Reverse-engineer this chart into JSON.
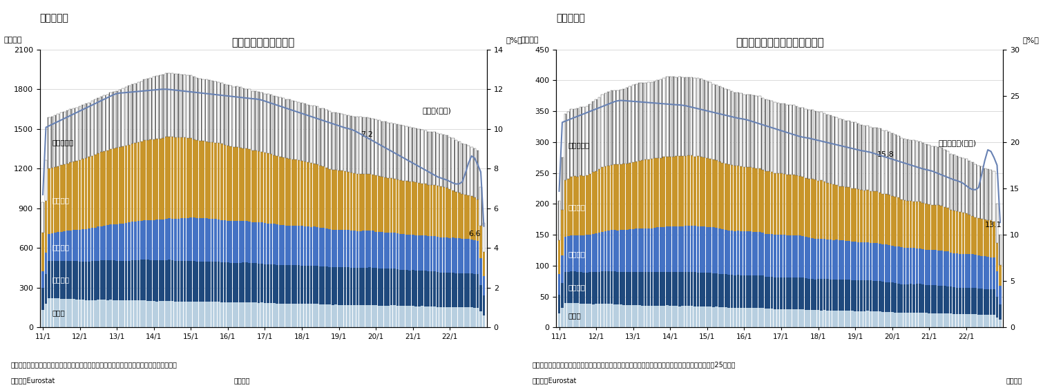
{
  "chart1": {
    "title": "失業率と国別失業者数",
    "subtitle": "（図表１）",
    "ylabel_left": "（万人）",
    "ylabel_right": "（%）",
    "ylim_left": [
      0,
      2100
    ],
    "ylim_right": [
      0,
      14
    ],
    "yticks_left": [
      0,
      300,
      600,
      900,
      1200,
      1500,
      1800,
      2100
    ],
    "yticks_right": [
      0,
      2,
      4,
      6,
      8,
      10,
      12,
      14
    ],
    "annotation_rate": "7.2",
    "annotation_rate2": "6.6",
    "annotation_rate_label": "失業率(右軸)",
    "note1": "（注）季節調整値、その他の国はドイツ・フランス・イタリア・スペインを除くユーロ圏。",
    "note2": "（資料）Eurostat",
    "note3": "（月次）",
    "colors": {
      "germany": "#c8d8e8",
      "france": "#4472c4",
      "italy": "#2f5496",
      "spain": "#c8952a",
      "others": "#ffffff",
      "hatch_color": "#333333",
      "line": "#4472c4"
    },
    "labels": [
      "ドイツ",
      "フランス",
      "イタリア",
      "スペイン",
      "その他の国"
    ]
  },
  "chart2": {
    "title": "若年失業率と国別若年失業者数",
    "subtitle": "（図表２）",
    "ylabel_left": "（万人）",
    "ylabel_right": "（%）",
    "ylim_left": [
      0,
      450
    ],
    "ylim_right": [
      0,
      30
    ],
    "yticks_left": [
      0,
      50,
      100,
      150,
      200,
      250,
      300,
      350,
      400,
      450
    ],
    "yticks_right": [
      0,
      5,
      10,
      15,
      20,
      25,
      30
    ],
    "annotation_rate": "15.8",
    "annotation_rate2": "13.1",
    "annotation_rate_label": "若年失業率(右軸)",
    "note1": "（注）季節調整値、その他の国はドイツ・フランス・イタリア・スペインを除くユーロ圏。若年者は25才未満",
    "note2": "（資料）Eurostat",
    "note3": "（月次）",
    "colors": {
      "germany": "#c8d8e8",
      "france": "#4472c4",
      "italy": "#2f5496",
      "spain": "#c8952a",
      "others": "#ffffff",
      "hatch_color": "#333333",
      "line": "#4472c4"
    },
    "labels": [
      "ドイツ",
      "フランス",
      "イタリア",
      "スペイン",
      "その他の国"
    ]
  },
  "x_labels": [
    "11/1",
    "12/1",
    "13/1",
    "14/1",
    "15/1",
    "16/1",
    "17/1",
    "18/1",
    "19/1",
    "20/1",
    "21/1",
    "22/1"
  ],
  "background_color": "#ffffff"
}
